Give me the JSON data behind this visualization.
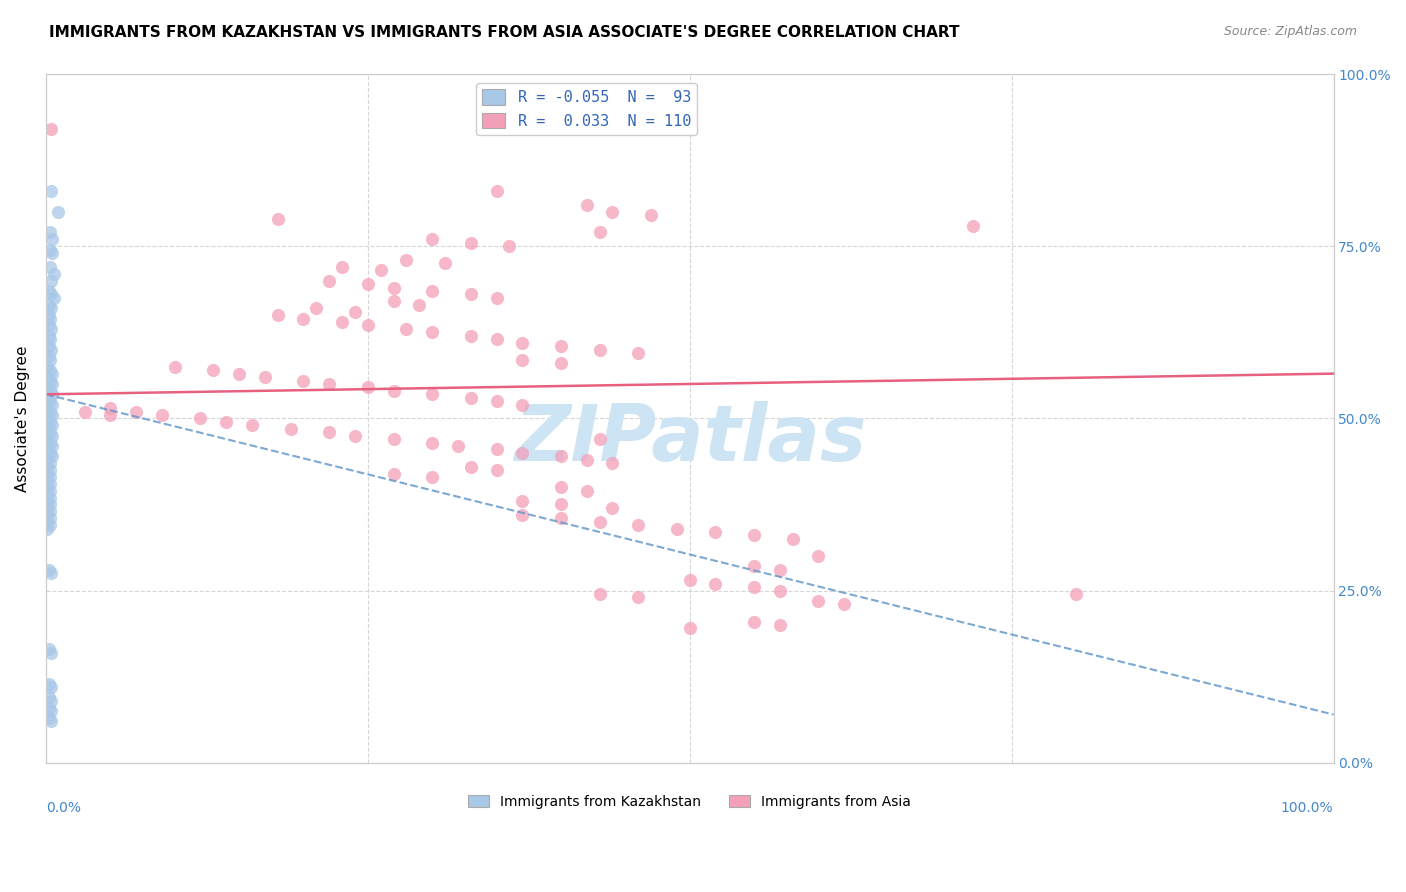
{
  "title": "IMMIGRANTS FROM KAZAKHSTAN VS IMMIGRANTS FROM ASIA ASSOCIATE'S DEGREE CORRELATION CHART",
  "source": "Source: ZipAtlas.com",
  "ylabel": "Associate's Degree",
  "right_yticks": [
    "0.0%",
    "25.0%",
    "50.0%",
    "75.0%",
    "100.0%"
  ],
  "watermark": "ZIPatlas",
  "legend1_label": "R = -0.055  N =  93",
  "legend2_label": "R =  0.033  N = 110",
  "blue_color": "#a8c8e8",
  "pink_color": "#f4a0b8",
  "blue_line_color": "#6699cc",
  "pink_line_color": "#e86080",
  "blue_scatter": [
    [
      0.004,
      0.83
    ],
    [
      0.009,
      0.8
    ],
    [
      0.003,
      0.77
    ],
    [
      0.005,
      0.76
    ],
    [
      0.003,
      0.745
    ],
    [
      0.005,
      0.74
    ],
    [
      0.003,
      0.72
    ],
    [
      0.006,
      0.71
    ],
    [
      0.004,
      0.7
    ],
    [
      0.002,
      0.685
    ],
    [
      0.004,
      0.68
    ],
    [
      0.006,
      0.675
    ],
    [
      0.002,
      0.665
    ],
    [
      0.004,
      0.66
    ],
    [
      0.002,
      0.65
    ],
    [
      0.003,
      0.645
    ],
    [
      0.002,
      0.635
    ],
    [
      0.004,
      0.63
    ],
    [
      0.002,
      0.62
    ],
    [
      0.003,
      0.615
    ],
    [
      0.002,
      0.605
    ],
    [
      0.004,
      0.6
    ],
    [
      0.002,
      0.59
    ],
    [
      0.003,
      0.585
    ],
    [
      0.001,
      0.575
    ],
    [
      0.003,
      0.57
    ],
    [
      0.005,
      0.565
    ],
    [
      0.001,
      0.56
    ],
    [
      0.003,
      0.555
    ],
    [
      0.005,
      0.55
    ],
    [
      0.001,
      0.545
    ],
    [
      0.003,
      0.54
    ],
    [
      0.005,
      0.535
    ],
    [
      0.001,
      0.53
    ],
    [
      0.003,
      0.525
    ],
    [
      0.005,
      0.52
    ],
    [
      0.001,
      0.515
    ],
    [
      0.003,
      0.51
    ],
    [
      0.005,
      0.505
    ],
    [
      0.001,
      0.5
    ],
    [
      0.003,
      0.495
    ],
    [
      0.005,
      0.49
    ],
    [
      0.001,
      0.485
    ],
    [
      0.003,
      0.48
    ],
    [
      0.005,
      0.475
    ],
    [
      0.001,
      0.47
    ],
    [
      0.003,
      0.465
    ],
    [
      0.005,
      0.46
    ],
    [
      0.001,
      0.455
    ],
    [
      0.003,
      0.45
    ],
    [
      0.005,
      0.445
    ],
    [
      0.001,
      0.44
    ],
    [
      0.003,
      0.435
    ],
    [
      0.001,
      0.43
    ],
    [
      0.003,
      0.425
    ],
    [
      0.001,
      0.42
    ],
    [
      0.003,
      0.415
    ],
    [
      0.001,
      0.41
    ],
    [
      0.003,
      0.405
    ],
    [
      0.001,
      0.4
    ],
    [
      0.003,
      0.395
    ],
    [
      0.001,
      0.39
    ],
    [
      0.003,
      0.385
    ],
    [
      0.001,
      0.38
    ],
    [
      0.003,
      0.375
    ],
    [
      0.001,
      0.37
    ],
    [
      0.003,
      0.365
    ],
    [
      0.001,
      0.36
    ],
    [
      0.003,
      0.355
    ],
    [
      0.001,
      0.35
    ],
    [
      0.003,
      0.345
    ],
    [
      0.001,
      0.34
    ],
    [
      0.002,
      0.28
    ],
    [
      0.004,
      0.275
    ],
    [
      0.002,
      0.165
    ],
    [
      0.004,
      0.16
    ],
    [
      0.002,
      0.115
    ],
    [
      0.004,
      0.11
    ],
    [
      0.002,
      0.095
    ],
    [
      0.004,
      0.09
    ],
    [
      0.002,
      0.08
    ],
    [
      0.004,
      0.075
    ],
    [
      0.002,
      0.065
    ],
    [
      0.004,
      0.06
    ]
  ],
  "pink_scatter": [
    [
      0.004,
      0.92
    ],
    [
      0.35,
      0.83
    ],
    [
      0.42,
      0.81
    ],
    [
      0.44,
      0.8
    ],
    [
      0.47,
      0.795
    ],
    [
      0.18,
      0.79
    ],
    [
      0.43,
      0.77
    ],
    [
      0.3,
      0.76
    ],
    [
      0.33,
      0.755
    ],
    [
      0.36,
      0.75
    ],
    [
      0.28,
      0.73
    ],
    [
      0.31,
      0.725
    ],
    [
      0.23,
      0.72
    ],
    [
      0.26,
      0.715
    ],
    [
      0.22,
      0.7
    ],
    [
      0.25,
      0.695
    ],
    [
      0.27,
      0.69
    ],
    [
      0.3,
      0.685
    ],
    [
      0.33,
      0.68
    ],
    [
      0.35,
      0.675
    ],
    [
      0.27,
      0.67
    ],
    [
      0.29,
      0.665
    ],
    [
      0.21,
      0.66
    ],
    [
      0.24,
      0.655
    ],
    [
      0.18,
      0.65
    ],
    [
      0.2,
      0.645
    ],
    [
      0.23,
      0.64
    ],
    [
      0.25,
      0.635
    ],
    [
      0.28,
      0.63
    ],
    [
      0.3,
      0.625
    ],
    [
      0.33,
      0.62
    ],
    [
      0.35,
      0.615
    ],
    [
      0.37,
      0.61
    ],
    [
      0.4,
      0.605
    ],
    [
      0.43,
      0.6
    ],
    [
      0.46,
      0.595
    ],
    [
      0.37,
      0.585
    ],
    [
      0.4,
      0.58
    ],
    [
      0.1,
      0.575
    ],
    [
      0.13,
      0.57
    ],
    [
      0.15,
      0.565
    ],
    [
      0.17,
      0.56
    ],
    [
      0.2,
      0.555
    ],
    [
      0.22,
      0.55
    ],
    [
      0.25,
      0.545
    ],
    [
      0.27,
      0.54
    ],
    [
      0.3,
      0.535
    ],
    [
      0.33,
      0.53
    ],
    [
      0.35,
      0.525
    ],
    [
      0.37,
      0.52
    ],
    [
      0.05,
      0.515
    ],
    [
      0.07,
      0.51
    ],
    [
      0.09,
      0.505
    ],
    [
      0.12,
      0.5
    ],
    [
      0.14,
      0.495
    ],
    [
      0.16,
      0.49
    ],
    [
      0.19,
      0.485
    ],
    [
      0.22,
      0.48
    ],
    [
      0.24,
      0.475
    ],
    [
      0.27,
      0.47
    ],
    [
      0.3,
      0.465
    ],
    [
      0.32,
      0.46
    ],
    [
      0.35,
      0.455
    ],
    [
      0.37,
      0.45
    ],
    [
      0.4,
      0.445
    ],
    [
      0.42,
      0.44
    ],
    [
      0.44,
      0.435
    ],
    [
      0.03,
      0.51
    ],
    [
      0.05,
      0.505
    ],
    [
      0.33,
      0.43
    ],
    [
      0.35,
      0.425
    ],
    [
      0.27,
      0.42
    ],
    [
      0.3,
      0.415
    ],
    [
      0.43,
      0.47
    ],
    [
      0.4,
      0.4
    ],
    [
      0.42,
      0.395
    ],
    [
      0.37,
      0.38
    ],
    [
      0.4,
      0.375
    ],
    [
      0.44,
      0.37
    ],
    [
      0.37,
      0.36
    ],
    [
      0.4,
      0.355
    ],
    [
      0.43,
      0.35
    ],
    [
      0.46,
      0.345
    ],
    [
      0.49,
      0.34
    ],
    [
      0.52,
      0.335
    ],
    [
      0.55,
      0.33
    ],
    [
      0.58,
      0.325
    ],
    [
      0.6,
      0.3
    ],
    [
      0.55,
      0.285
    ],
    [
      0.57,
      0.28
    ],
    [
      0.5,
      0.265
    ],
    [
      0.52,
      0.26
    ],
    [
      0.55,
      0.255
    ],
    [
      0.57,
      0.25
    ],
    [
      0.43,
      0.245
    ],
    [
      0.46,
      0.24
    ],
    [
      0.6,
      0.235
    ],
    [
      0.62,
      0.23
    ],
    [
      0.8,
      0.245
    ],
    [
      0.55,
      0.205
    ],
    [
      0.57,
      0.2
    ],
    [
      0.5,
      0.195
    ],
    [
      0.72,
      0.78
    ]
  ],
  "blue_trend_x": [
    0.0,
    1.0
  ],
  "blue_trend_y": [
    0.535,
    0.07
  ],
  "pink_trend_x": [
    0.0,
    1.0
  ],
  "pink_trend_y": [
    0.535,
    0.565
  ],
  "xlim": [
    0.0,
    1.0
  ],
  "ylim": [
    0.0,
    1.0
  ],
  "grid_color": "#cccccc",
  "background_color": "#ffffff",
  "title_fontsize": 11,
  "source_fontsize": 9,
  "watermark_color": "#cce4f4",
  "watermark_fontsize": 56
}
